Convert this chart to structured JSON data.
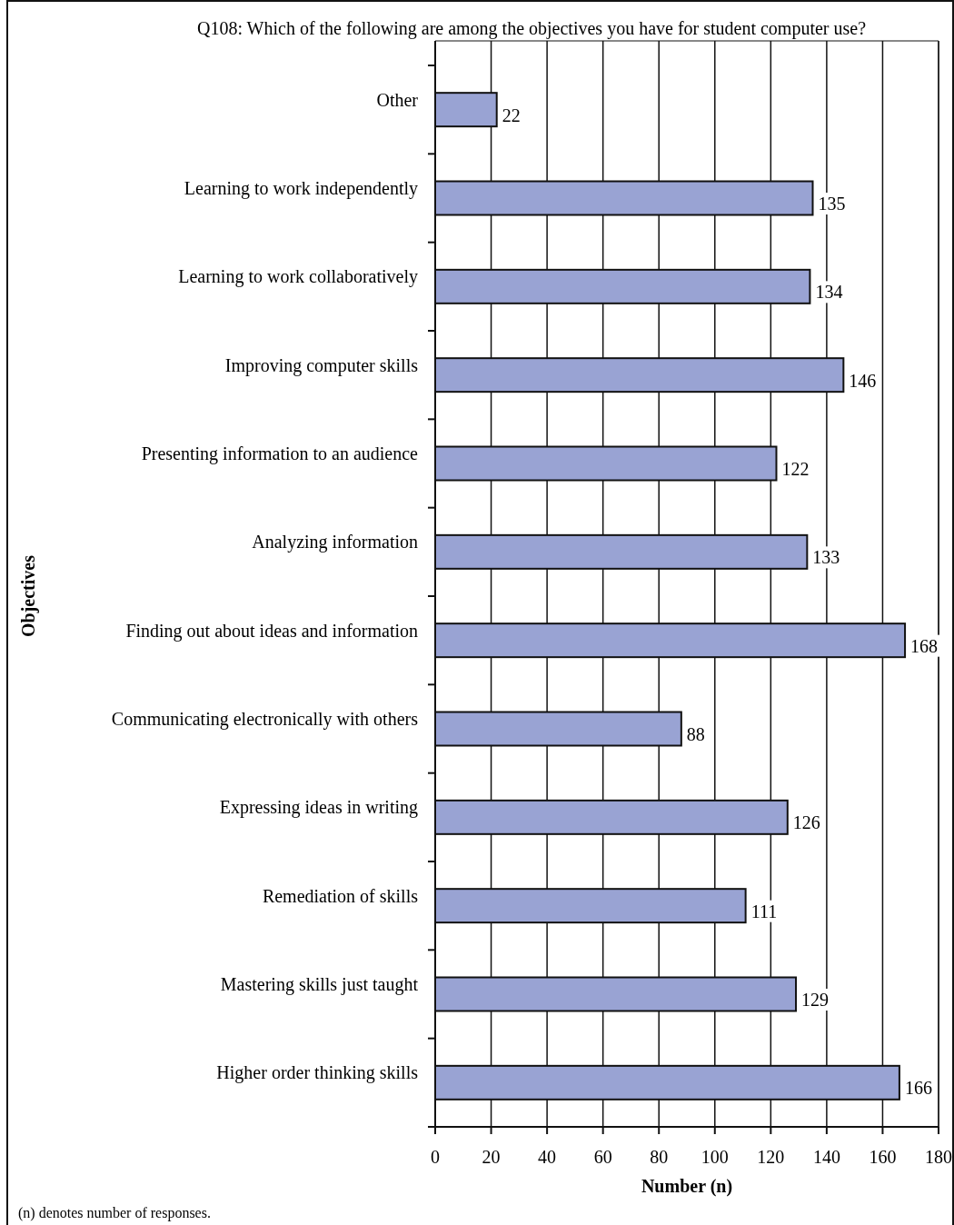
{
  "chart_data": {
    "type": "bar",
    "orientation": "horizontal",
    "title": "Q108:  Which of the following are among the objectives you have for student computer use?",
    "xlabel": "Number (n)",
    "ylabel": "Objectives",
    "categories": [
      "Other",
      "Learning to work independently",
      "Learning to work collaboratively",
      "Improving computer skills",
      "Presenting information to an audience",
      "Analyzing information",
      "Finding out about ideas and information",
      "Communicating electronically with others",
      "Expressing ideas in writing",
      "Remediation of skills",
      "Mastering skills just taught",
      "Higher order thinking skills"
    ],
    "values": [
      22,
      135,
      134,
      146,
      122,
      133,
      168,
      88,
      126,
      111,
      129,
      166
    ],
    "color": "#99a3d3",
    "xlim": [
      0,
      180
    ],
    "xticks": [
      0,
      20,
      40,
      60,
      80,
      100,
      120,
      140,
      160,
      180
    ],
    "grid": "x",
    "data_labels": true,
    "annotations": [
      "(n) denotes number of responses."
    ]
  }
}
